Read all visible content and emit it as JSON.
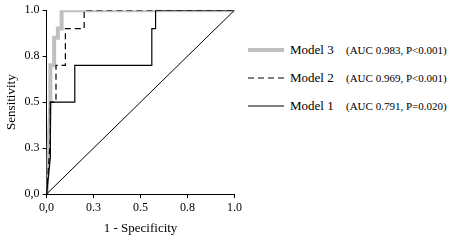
{
  "chart_data": {
    "type": "line",
    "x_label": "1 - Specificity",
    "y_label": "Sensitivity",
    "xlim": [
      0,
      1
    ],
    "ylim": [
      0,
      1
    ],
    "xticks": [
      {
        "value": 0,
        "label": "0,0"
      },
      {
        "value": 0.25,
        "label": "0.3"
      },
      {
        "value": 0.5,
        "label": "0.5"
      },
      {
        "value": 0.75,
        "label": "0.8"
      },
      {
        "value": 1,
        "label": "1.0"
      }
    ],
    "yticks": [
      {
        "value": 0,
        "label": "0,0"
      },
      {
        "value": 0.25,
        "label": "0.3"
      },
      {
        "value": 0.5,
        "label": "0.5"
      },
      {
        "value": 0.75,
        "label": "0.8"
      },
      {
        "value": 1,
        "label": "1.0"
      }
    ],
    "grid": false,
    "legend": "right",
    "reference_line": {
      "x": [
        0,
        1
      ],
      "values": [
        0,
        1
      ],
      "color": "#000000",
      "line_style": "solid"
    },
    "series": [
      {
        "name": "Model 3",
        "annotation": "(AUC 0.983, P<0.001)",
        "color": "#c0c0c0",
        "line_style": "solid",
        "x": [
          0,
          0.02,
          0.02,
          0.04,
          0.04,
          0.06,
          0.06,
          0.08,
          0.08,
          1
        ],
        "values": [
          0,
          0.5,
          0.7,
          0.7,
          0.85,
          0.85,
          0.9,
          0.9,
          1,
          1
        ]
      },
      {
        "name": "Model 2",
        "annotation": "(AUC 0.969, P<0.001)",
        "color": "#000000",
        "line_style": "dashed",
        "x": [
          0,
          0.02,
          0.02,
          0.05,
          0.05,
          0.1,
          0.1,
          0.2,
          0.2,
          1
        ],
        "values": [
          0,
          0.3,
          0.5,
          0.5,
          0.7,
          0.7,
          0.9,
          0.9,
          1,
          1
        ]
      },
      {
        "name": "Model 1",
        "annotation": "(AUC 0.791, P=0.020)",
        "color": "#000000",
        "line_style": "solid",
        "x": [
          0,
          0.02,
          0.02,
          0.07,
          0.07,
          0.15,
          0.15,
          0.56,
          0.56,
          0.58,
          0.58,
          1
        ],
        "values": [
          0,
          0.2,
          0.5,
          0.5,
          0.5,
          0.5,
          0.7,
          0.7,
          0.9,
          0.9,
          1,
          1
        ]
      }
    ]
  }
}
